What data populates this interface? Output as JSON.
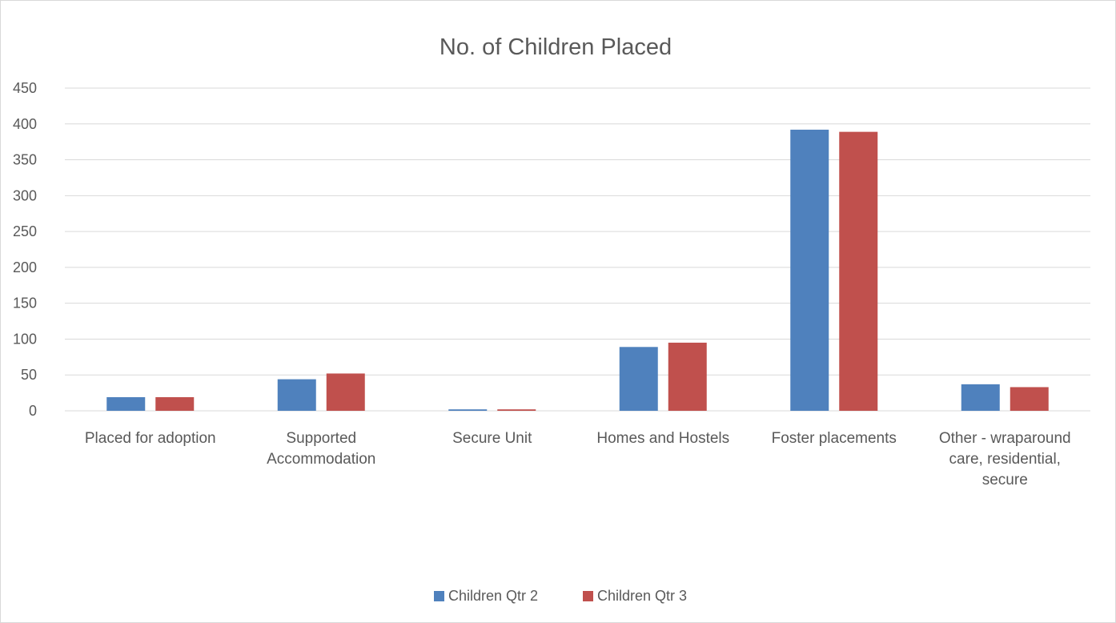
{
  "chart_data": {
    "type": "bar",
    "title": "No. of Children Placed",
    "xlabel": "",
    "ylabel": "",
    "ylim": [
      0,
      450
    ],
    "yticks": [
      0,
      50,
      100,
      150,
      200,
      250,
      300,
      350,
      400,
      450
    ],
    "grid": true,
    "legend_position": "bottom",
    "categories": [
      "Placed for adoption",
      "Supported Accommodation",
      "Secure Unit",
      "Homes and Hostels",
      "Foster placements",
      "Other - wraparound care, residential, secure"
    ],
    "category_label_lines": [
      [
        "Placed for adoption"
      ],
      [
        "Supported",
        "Accommodation"
      ],
      [
        "Secure Unit"
      ],
      [
        "Homes and Hostels"
      ],
      [
        "Foster placements"
      ],
      [
        "Other - wraparound",
        "care, residential,",
        "secure"
      ]
    ],
    "series": [
      {
        "name": "Children Qtr 2",
        "color": "#4f81bd",
        "values": [
          19,
          44,
          2,
          89,
          392,
          37
        ]
      },
      {
        "name": "Children Qtr 3",
        "color": "#c0504d",
        "values": [
          19,
          52,
          2,
          95,
          389,
          33
        ]
      }
    ],
    "gridline_color": "#d9d9d9"
  }
}
